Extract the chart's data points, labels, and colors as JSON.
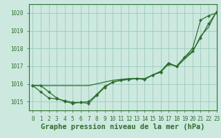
{
  "title": "Graphe pression niveau de la mer (hPa)",
  "xlim": [
    -0.5,
    23
  ],
  "ylim": [
    1014.5,
    1020.5
  ],
  "yticks": [
    1015,
    1016,
    1017,
    1018,
    1019,
    1020
  ],
  "xticks": [
    0,
    1,
    2,
    3,
    4,
    5,
    6,
    7,
    8,
    9,
    10,
    11,
    12,
    13,
    14,
    15,
    16,
    17,
    18,
    19,
    20,
    21,
    22,
    23
  ],
  "bg_color": "#cce8df",
  "grid_color": "#99ccbb",
  "line_color": "#2d6e2d",
  "marker": "D",
  "marker_size": 2.2,
  "line_width": 0.9,
  "curves": [
    [
      1015.9,
      1015.55,
      1015.2,
      1015.15,
      1015.05,
      1014.95,
      1014.95,
      1014.9,
      1015.35,
      1015.8,
      1016.1,
      1016.2,
      1016.25,
      1016.3,
      1016.25,
      1016.5,
      1016.65,
      1017.15,
      1017.0,
      1017.5,
      1017.85,
      1018.6,
      1019.4,
      1020.05
    ],
    [
      1015.9,
      1015.9,
      1015.55,
      1015.2,
      1015.0,
      1014.9,
      1014.95,
      1015.0,
      1015.4,
      1015.85,
      1016.1,
      1016.2,
      1016.25,
      1016.3,
      1016.25,
      1016.5,
      1016.7,
      1017.1,
      1017.0,
      1017.5,
      1018.0,
      1019.6,
      1019.85,
      1020.0
    ],
    [
      1015.9,
      1015.9,
      1015.9,
      1015.9,
      1015.9,
      1015.9,
      1015.9,
      1015.9,
      1016.0,
      1016.1,
      1016.2,
      1016.25,
      1016.3,
      1016.3,
      1016.3,
      1016.5,
      1016.7,
      1017.2,
      1016.95,
      1017.4,
      1017.8,
      1018.7,
      1019.2,
      1020.1
    ]
  ],
  "font_family": "monospace",
  "title_fontsize": 7.5,
  "tick_fontsize": 5.5
}
